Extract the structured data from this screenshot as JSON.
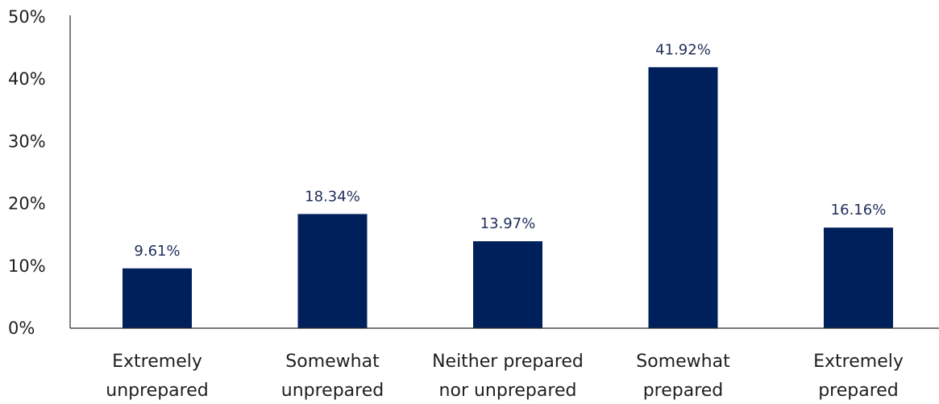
{
  "chart_data": {
    "type": "bar",
    "categories": [
      [
        "Extremely",
        "unprepared"
      ],
      [
        "Somewhat",
        "unprepared"
      ],
      [
        "Neither prepared",
        "nor unprepared"
      ],
      [
        "Somewhat",
        "prepared"
      ],
      [
        "Extremely",
        "prepared"
      ]
    ],
    "values": [
      9.61,
      18.34,
      13.97,
      41.92,
      16.16
    ],
    "data_labels": [
      "9.61%",
      "18.34%",
      "13.97%",
      "41.92%",
      "16.16%"
    ],
    "y_ticks": [
      0,
      10,
      20,
      30,
      40,
      50
    ],
    "y_tick_labels": [
      "0%",
      "10%",
      "20%",
      "30%",
      "40%",
      "50%"
    ],
    "ylim": [
      0,
      50
    ],
    "title": "",
    "xlabel": "",
    "ylabel": "",
    "grid": false,
    "legend": "none",
    "bar_color": "#00205b"
  }
}
